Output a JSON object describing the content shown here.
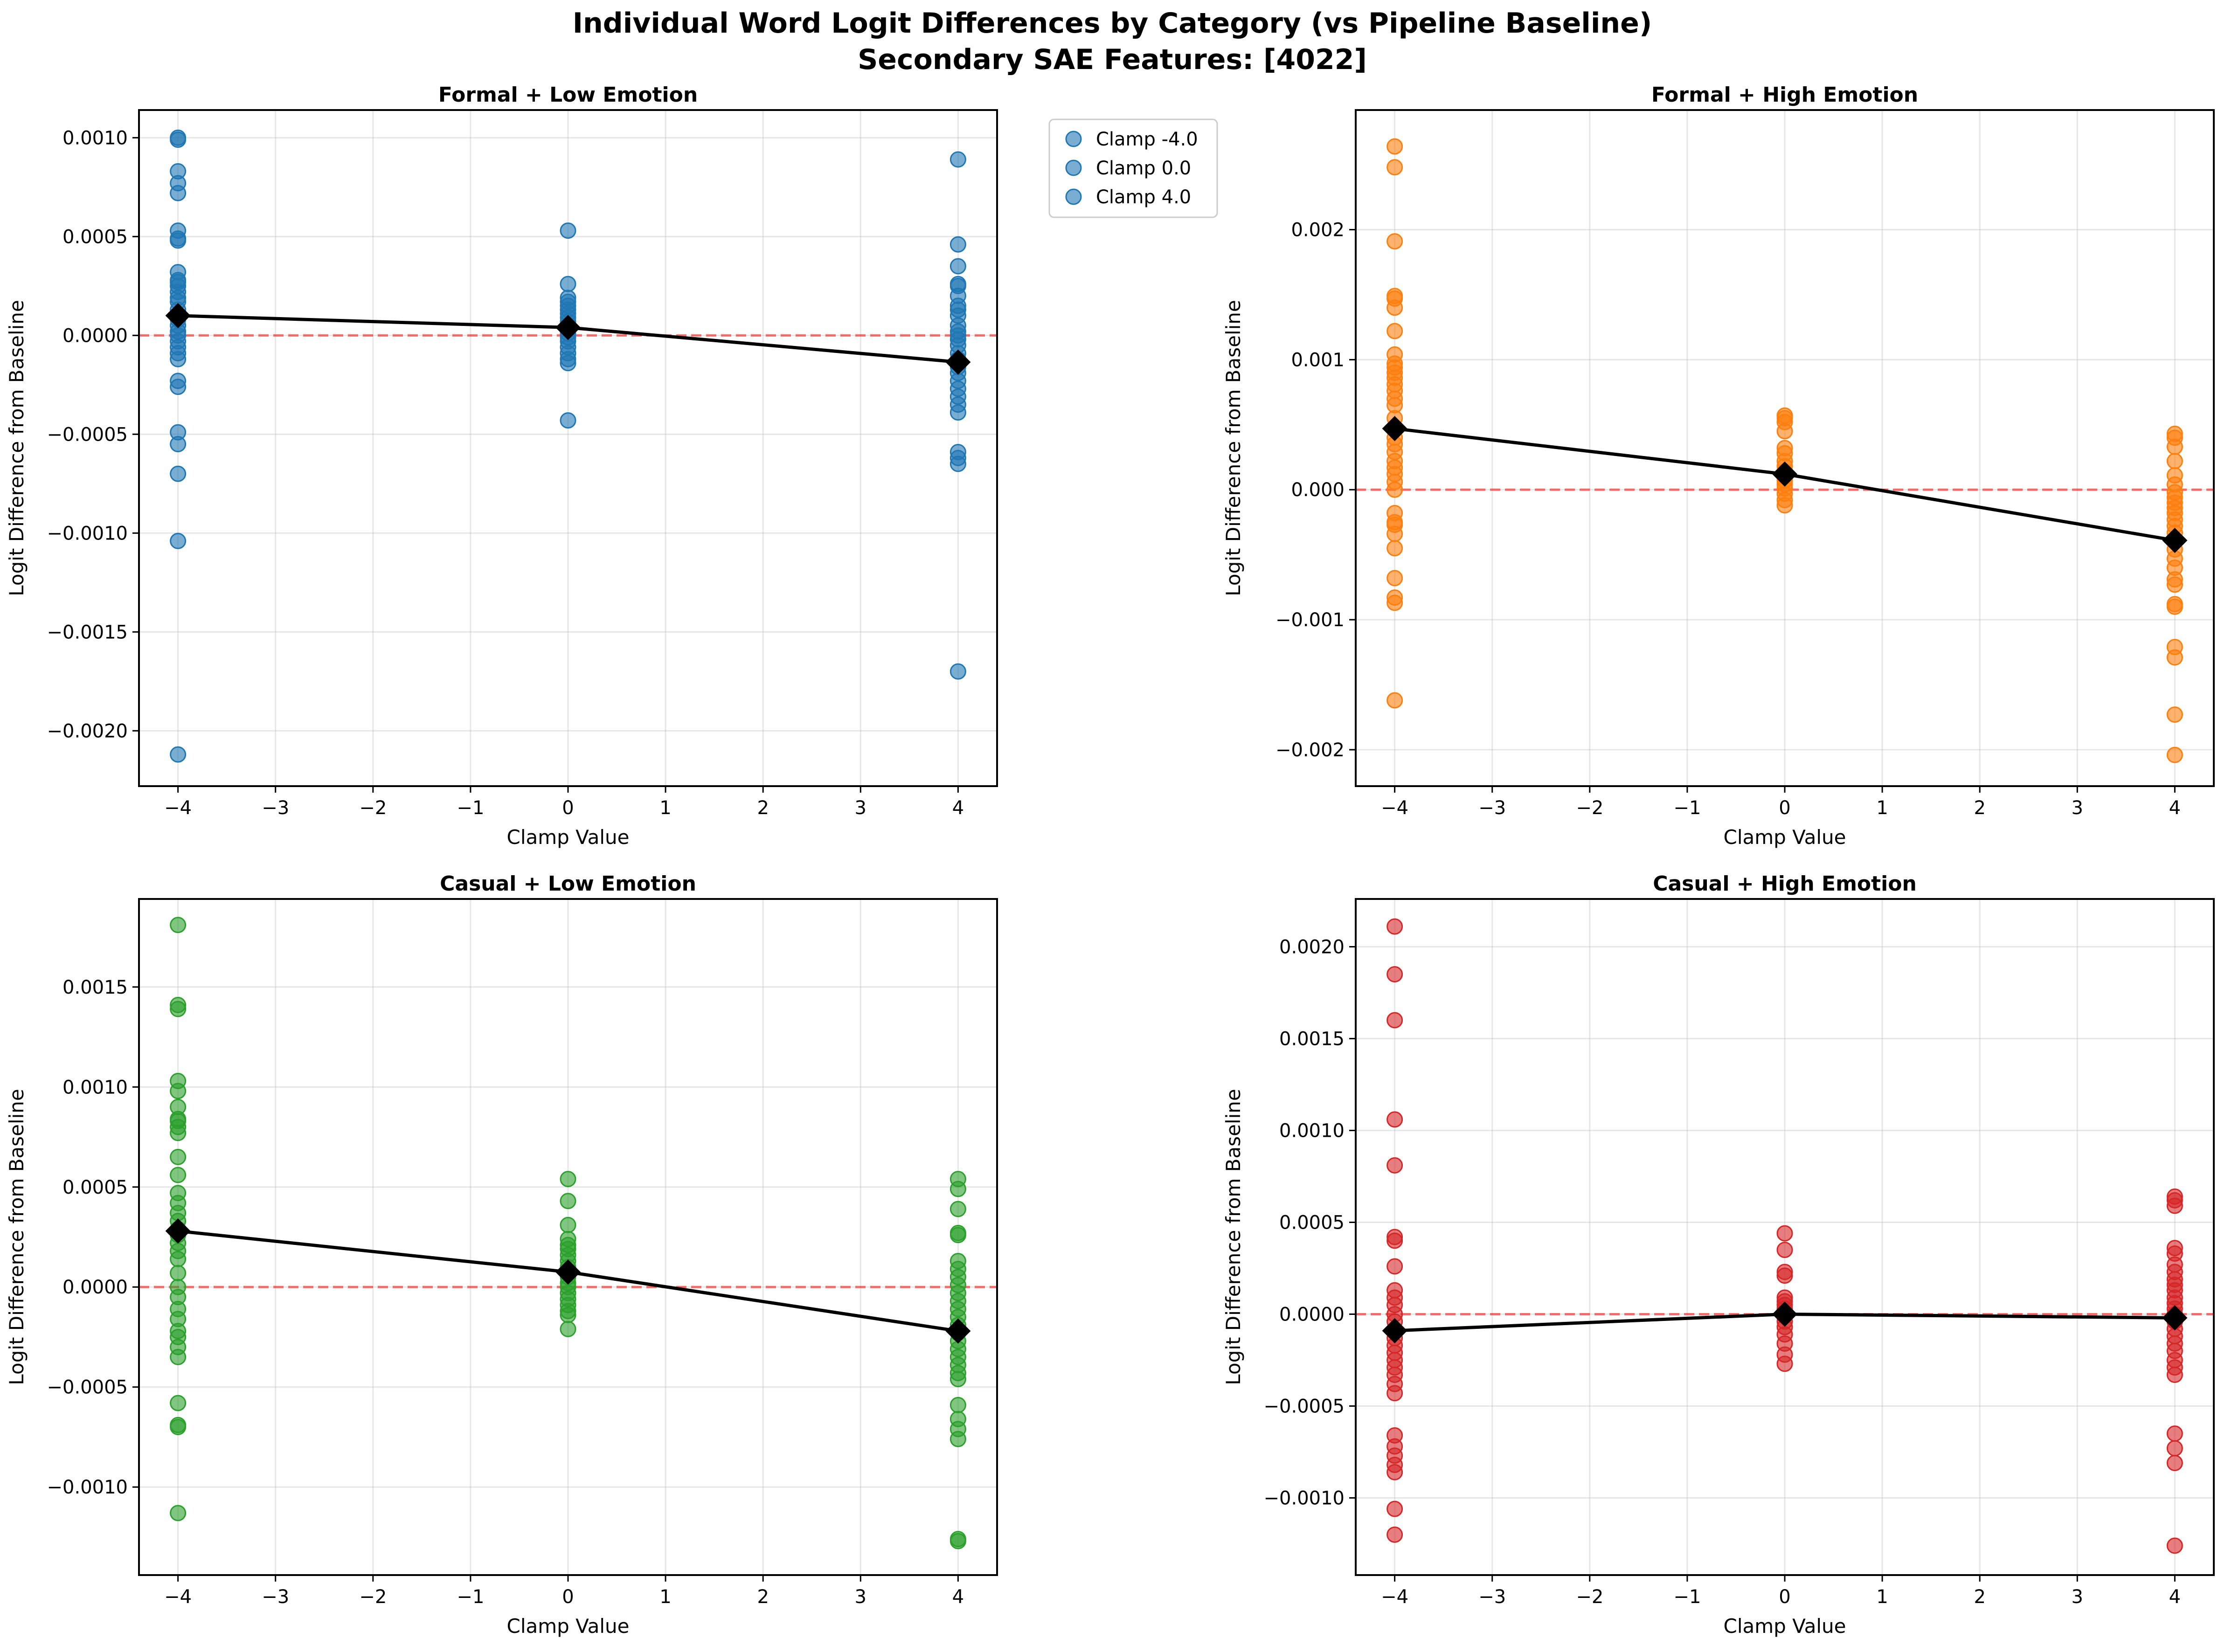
{
  "figure": {
    "title_line1": "Individual Word Logit Differences by Category (vs Pipeline Baseline)",
    "title_line2": "Secondary SAE Features: [4022]"
  },
  "chart_data": [
    {
      "type": "scatter",
      "title": "Formal + Low Emotion",
      "xlabel": "Clamp Value",
      "ylabel": "Logit Difference from Baseline",
      "color": "#1f77b4",
      "xlim": [
        -4.4,
        4.4
      ],
      "ylim": [
        -0.00228,
        0.00114
      ],
      "xticks": [
        -4,
        -3,
        -2,
        -1,
        0,
        1,
        2,
        3,
        4
      ],
      "xtick_labels": [
        "−4",
        "−3",
        "−2",
        "−1",
        "0",
        "1",
        "2",
        "3",
        "4"
      ],
      "yticks": [
        -0.002,
        -0.0015,
        -0.001,
        -0.0005,
        0.0,
        0.0005,
        0.001
      ],
      "ytick_labels": [
        "−0.0020",
        "−0.0015",
        "−0.0010",
        "−0.0005",
        "0.0000",
        "0.0005",
        "0.0010"
      ],
      "grid": true,
      "zero_line": 0,
      "legend": {
        "placement": "outside-right",
        "entries": [
          "Clamp -4.0",
          "Clamp 0.0",
          "Clamp 4.0"
        ]
      },
      "points": [
        {
          "x": -4,
          "y": [
            0.001,
            0.00099,
            0.00083,
            0.00077,
            0.00072,
            0.00053,
            0.00049,
            0.00048,
            0.00032,
            0.00028,
            0.00027,
            0.00025,
            0.00022,
            0.00019,
            0.00017,
            0.00013,
            0.0001,
            8e-05,
            5e-05,
            2e-05,
            0.0,
            -3e-05,
            -6e-05,
            -9e-05,
            -0.00012,
            -0.00023,
            -0.00026,
            -0.00049,
            -0.00055,
            -0.0007,
            -0.00104,
            -0.00212
          ]
        },
        {
          "x": 0,
          "y": [
            0.00053,
            0.00026,
            0.00019,
            0.00017,
            0.00015,
            0.00013,
            0.00011,
            9e-05,
            7e-05,
            5e-05,
            3e-05,
            1e-05,
            -1e-05,
            -3e-05,
            -6e-05,
            -9e-05,
            -0.00012,
            -0.00014,
            -0.00043
          ]
        },
        {
          "x": 4,
          "y": [
            0.00089,
            0.00046,
            0.00035,
            0.00026,
            0.00025,
            0.0002,
            0.00015,
            0.00013,
            0.0001,
            5e-05,
            2e-05,
            0.0,
            -2e-05,
            -5e-05,
            -9e-05,
            -0.00012,
            -0.00016,
            -0.00019,
            -0.00023,
            -0.00027,
            -0.00031,
            -0.00035,
            -0.00039,
            -0.00059,
            -0.00062,
            -0.00065,
            -0.0017
          ]
        }
      ],
      "means": {
        "x": [
          -4,
          0,
          4
        ],
        "y": [
          0.0001,
          4e-05,
          -0.000135
        ]
      }
    },
    {
      "type": "scatter",
      "title": "Formal + High Emotion",
      "xlabel": "Clamp Value",
      "ylabel": "Logit Difference from Baseline",
      "color": "#ff7f0e",
      "xlim": [
        -4.4,
        4.4
      ],
      "ylim": [
        -0.00228,
        0.00292
      ],
      "xticks": [
        -4,
        -3,
        -2,
        -1,
        0,
        1,
        2,
        3,
        4
      ],
      "xtick_labels": [
        "−4",
        "−3",
        "−2",
        "−1",
        "0",
        "1",
        "2",
        "3",
        "4"
      ],
      "yticks": [
        -0.002,
        -0.001,
        0.0,
        0.001,
        0.002
      ],
      "ytick_labels": [
        "−0.002",
        "−0.001",
        "0.000",
        "0.001",
        "0.002"
      ],
      "grid": true,
      "zero_line": 0,
      "points": [
        {
          "x": -4,
          "y": [
            0.00264,
            0.00248,
            0.00191,
            0.00149,
            0.00147,
            0.0014,
            0.00122,
            0.00104,
            0.00097,
            0.00094,
            0.0009,
            0.00086,
            0.00081,
            0.00076,
            0.0007,
            0.00065,
            0.00055,
            0.00047,
            0.0004,
            0.00035,
            0.00029,
            0.00022,
            0.00017,
            0.00012,
            6e-05,
            0.0,
            -0.00018,
            -0.00025,
            -0.00027,
            -0.00034,
            -0.00045,
            -0.00068,
            -0.00083,
            -0.00087,
            -0.00162
          ]
        },
        {
          "x": 0,
          "y": [
            0.00057,
            0.00055,
            0.00052,
            0.00045,
            0.00032,
            0.00028,
            0.00022,
            0.00018,
            0.00014,
            0.0001,
            7e-05,
            4e-05,
            1e-05,
            -3e-05,
            -8e-05,
            -0.00012
          ]
        },
        {
          "x": 4,
          "y": [
            0.00043,
            0.0004,
            0.00033,
            0.00022,
            0.00011,
            4e-05,
            -2e-05,
            -6e-05,
            -0.0001,
            -0.00014,
            -0.00018,
            -0.00023,
            -0.00028,
            -0.00033,
            -0.00039,
            -0.00046,
            -0.00053,
            -0.0006,
            -0.00069,
            -0.00073,
            -0.00088,
            -0.0009,
            -0.00121,
            -0.00129,
            -0.00173,
            -0.00204
          ]
        }
      ],
      "means": {
        "x": [
          -4,
          0,
          4
        ],
        "y": [
          0.00047,
          0.00012,
          -0.00039
        ]
      }
    },
    {
      "type": "scatter",
      "title": "Casual + Low Emotion",
      "xlabel": "Clamp Value",
      "ylabel": "Logit Difference from Baseline",
      "color": "#2ca02c",
      "xlim": [
        -4.4,
        4.4
      ],
      "ylim": [
        -0.00144,
        0.00194
      ],
      "xticks": [
        -4,
        -3,
        -2,
        -1,
        0,
        1,
        2,
        3,
        4
      ],
      "xtick_labels": [
        "−4",
        "−3",
        "−2",
        "−1",
        "0",
        "1",
        "2",
        "3",
        "4"
      ],
      "yticks": [
        -0.001,
        -0.0005,
        0.0,
        0.0005,
        0.001,
        0.0015
      ],
      "ytick_labels": [
        "−0.0010",
        "−0.0005",
        "0.0000",
        "0.0005",
        "0.0010",
        "0.0015"
      ],
      "grid": true,
      "zero_line": 0,
      "points": [
        {
          "x": -4,
          "y": [
            0.00181,
            0.00141,
            0.00139,
            0.00103,
            0.00098,
            0.0009,
            0.00084,
            0.00083,
            0.0008,
            0.00077,
            0.00065,
            0.00056,
            0.00047,
            0.00042,
            0.00037,
            0.00033,
            0.00029,
            0.00026,
            0.00022,
            0.00018,
            0.00014,
            7e-05,
            0.0,
            -5e-05,
            -0.00011,
            -0.00016,
            -0.00022,
            -0.00025,
            -0.0003,
            -0.00035,
            -0.00058,
            -0.00069,
            -0.0007,
            -0.00113
          ]
        },
        {
          "x": 0,
          "y": [
            0.00054,
            0.00043,
            0.00031,
            0.00024,
            0.00021,
            0.00019,
            0.00016,
            0.00013,
            0.0001,
            8e-05,
            5e-05,
            2e-05,
            0.0,
            -3e-05,
            -6e-05,
            -9e-05,
            -0.00012,
            -0.00014,
            -0.00021
          ]
        },
        {
          "x": 4,
          "y": [
            0.00054,
            0.00049,
            0.00039,
            0.00027,
            0.00026,
            0.00013,
            9e-05,
            5e-05,
            1e-05,
            -3e-05,
            -7e-05,
            -0.00011,
            -0.00015,
            -0.00019,
            -0.00023,
            -0.00027,
            -0.00031,
            -0.00035,
            -0.00039,
            -0.00043,
            -0.00046,
            -0.00059,
            -0.00066,
            -0.00071,
            -0.00076,
            -0.00126,
            -0.00127
          ]
        }
      ],
      "means": {
        "x": [
          -4,
          0,
          4
        ],
        "y": [
          0.00028,
          7.5e-05,
          -0.00022
        ]
      }
    },
    {
      "type": "scatter",
      "title": "Casual + High Emotion",
      "xlabel": "Clamp Value",
      "ylabel": "Logit Difference from Baseline",
      "color": "#d62728",
      "xlim": [
        -4.4,
        4.4
      ],
      "ylim": [
        -0.00142,
        0.00226
      ],
      "xticks": [
        -4,
        -3,
        -2,
        -1,
        0,
        1,
        2,
        3,
        4
      ],
      "xtick_labels": [
        "−4",
        "−3",
        "−2",
        "−1",
        "0",
        "1",
        "2",
        "3",
        "4"
      ],
      "yticks": [
        -0.001,
        -0.0005,
        0.0,
        0.0005,
        0.001,
        0.0015,
        0.002
      ],
      "ytick_labels": [
        "−0.0010",
        "−0.0005",
        "0.0000",
        "0.0005",
        "0.0010",
        "0.0015",
        "0.0020"
      ],
      "grid": true,
      "zero_line": 0,
      "points": [
        {
          "x": -4,
          "y": [
            0.00211,
            0.00185,
            0.0016,
            0.00106,
            0.00081,
            0.00042,
            0.0004,
            0.00026,
            0.00013,
            9e-05,
            5e-05,
            0.0,
            -4e-05,
            -9e-05,
            -0.00013,
            -0.00017,
            -0.00021,
            -0.00025,
            -0.00029,
            -0.00033,
            -0.00038,
            -0.00043,
            -0.00066,
            -0.00072,
            -0.00077,
            -0.00082,
            -0.00086,
            -0.00106,
            -0.0012
          ]
        },
        {
          "x": 0,
          "y": [
            0.00044,
            0.00035,
            0.00023,
            0.00021,
            9e-05,
            7e-05,
            5e-05,
            3e-05,
            1e-05,
            -1e-05,
            -4e-05,
            -7e-05,
            -0.00011,
            -0.00016,
            -0.00022,
            -0.00027
          ]
        },
        {
          "x": 4,
          "y": [
            0.00064,
            0.00062,
            0.00059,
            0.00036,
            0.00033,
            0.00027,
            0.00023,
            0.00019,
            0.00016,
            0.00013,
            9e-05,
            6e-05,
            3e-05,
            0.0,
            -4e-05,
            -8e-05,
            -0.00012,
            -0.00016,
            -0.0002,
            -0.00025,
            -0.00029,
            -0.00033,
            -0.00065,
            -0.00073,
            -0.00081,
            -0.00126
          ]
        }
      ],
      "means": {
        "x": [
          -4,
          0,
          4
        ],
        "y": [
          -9e-05,
          0.0,
          -2e-05
        ]
      }
    }
  ]
}
